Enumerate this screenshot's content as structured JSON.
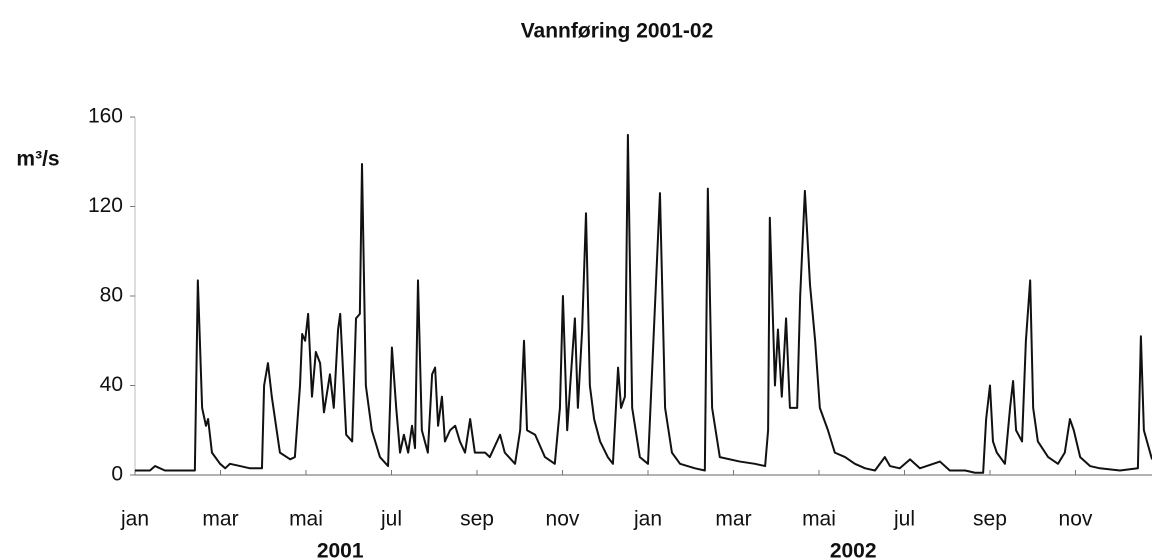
{
  "chart_data": {
    "type": "line",
    "title": "Vannføring 2001-02",
    "y_label": "m³/s",
    "x_group_labels": [
      "2001",
      "2002"
    ],
    "xlim": [
      0,
      23.79
    ],
    "xticks": [
      {
        "value": 0,
        "label": "jan"
      },
      {
        "value": 2,
        "label": "mar"
      },
      {
        "value": 4,
        "label": "mai"
      },
      {
        "value": 6,
        "label": "jul"
      },
      {
        "value": 8,
        "label": "sep"
      },
      {
        "value": 10,
        "label": "nov"
      },
      {
        "value": 12,
        "label": "jan"
      },
      {
        "value": 14,
        "label": "mar"
      },
      {
        "value": 16,
        "label": "mai"
      },
      {
        "value": 18,
        "label": "jul"
      },
      {
        "value": 20,
        "label": "sep"
      },
      {
        "value": 22,
        "label": "nov"
      }
    ],
    "ylim": [
      0,
      160
    ],
    "yticks": [
      0,
      40,
      80,
      120,
      160
    ],
    "color": "#111111",
    "x": [
      0,
      0.35,
      0.47,
      0.7,
      1.4,
      1.47,
      1.57,
      1.66,
      1.71,
      1.8,
      1.99,
      2.11,
      2.22,
      2.46,
      2.69,
      2.97,
      3.02,
      3.11,
      3.2,
      3.39,
      3.63,
      3.74,
      3.86,
      3.91,
      3.98,
      4.05,
      4.14,
      4.23,
      4.33,
      4.42,
      4.56,
      4.65,
      4.75,
      4.8,
      4.87,
      4.94,
      5.08,
      5.17,
      5.26,
      5.31,
      5.4,
      5.54,
      5.73,
      5.92,
      6.01,
      6.11,
      6.2,
      6.29,
      6.39,
      6.48,
      6.55,
      6.62,
      6.71,
      6.85,
      6.95,
      7.02,
      7.09,
      7.18,
      7.25,
      7.37,
      7.49,
      7.6,
      7.72,
      7.84,
      7.95,
      8.19,
      8.3,
      8.54,
      8.65,
      8.89,
      9.01,
      9.1,
      9.17,
      9.36,
      9.59,
      9.82,
      9.94,
      10.01,
      10.11,
      10.18,
      10.29,
      10.36,
      10.46,
      10.55,
      10.64,
      10.74,
      10.88,
      11.06,
      11.18,
      11.3,
      11.37,
      11.46,
      11.53,
      11.63,
      11.81,
      12.0,
      12.28,
      12.4,
      12.56,
      12.75,
      13.1,
      13.33,
      13.4,
      13.5,
      13.68,
      14.15,
      14.5,
      14.74,
      14.81,
      14.85,
      14.97,
      15.04,
      15.13,
      15.23,
      15.32,
      15.49,
      15.56,
      15.67,
      15.79,
      15.91,
      16.02,
      16.21,
      16.37,
      16.61,
      16.84,
      17.08,
      17.31,
      17.54,
      17.66,
      17.89,
      18.13,
      18.36,
      18.83,
      19.06,
      19.42,
      19.65,
      19.84,
      19.91,
      20.0,
      20.07,
      20.16,
      20.35,
      20.47,
      20.54,
      20.61,
      20.75,
      20.84,
      20.94,
      21.01,
      21.12,
      21.36,
      21.59,
      21.75,
      21.87,
      21.96,
      22.11,
      22.34,
      22.57,
      23.04,
      23.46,
      23.53,
      23.6,
      23.79
    ],
    "values": [
      2,
      2,
      4,
      2,
      2,
      87,
      30,
      22,
      25,
      10,
      5,
      3,
      5,
      4,
      3,
      3,
      40,
      50,
      35,
      10,
      7,
      8,
      40,
      63,
      60,
      72,
      35,
      55,
      50,
      28,
      45,
      30,
      65,
      72,
      45,
      18,
      15,
      70,
      72,
      139,
      40,
      20,
      8,
      4,
      57,
      30,
      10,
      18,
      10,
      22,
      12,
      87,
      20,
      10,
      45,
      48,
      22,
      35,
      15,
      20,
      22,
      15,
      10,
      25,
      10,
      10,
      8,
      18,
      10,
      5,
      20,
      60,
      20,
      18,
      8,
      5,
      30,
      80,
      20,
      40,
      70,
      30,
      65,
      117,
      40,
      25,
      15,
      8,
      5,
      48,
      30,
      35,
      152,
      30,
      8,
      5,
      126,
      30,
      10,
      5,
      3,
      2,
      128,
      30,
      8,
      6,
      5,
      4,
      20,
      115,
      40,
      65,
      35,
      70,
      30,
      30,
      80,
      127,
      85,
      60,
      30,
      20,
      10,
      8,
      5,
      3,
      2,
      8,
      4,
      3,
      7,
      3,
      6,
      2,
      2,
      1,
      1,
      25,
      40,
      15,
      10,
      5,
      30,
      42,
      20,
      15,
      60,
      87,
      30,
      15,
      8,
      5,
      10,
      25,
      20,
      8,
      4,
      3,
      2,
      3,
      62,
      20,
      7
    ]
  }
}
